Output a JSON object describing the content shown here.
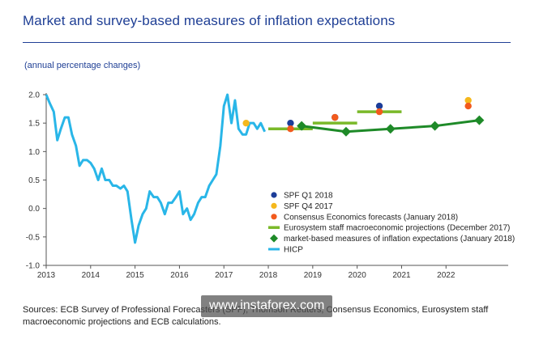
{
  "header": {
    "title": "Market and survey-based measures of inflation expectations",
    "subtitle": "(annual percentage changes)"
  },
  "footer": {
    "source_line1": "Sources: ECB Survey of Professional Forecasters (SPF), Thomson Reuters, Consensus Economics, Eurosystem staff",
    "source_line2": "macroeconomic projections and ECB calculations."
  },
  "watermark": {
    "text": "www.instaforex.com"
  },
  "chart_data": {
    "type": "line",
    "title": "Market and survey-based measures of inflation expectations",
    "subtitle": "(annual percentage changes)",
    "xlabel": "",
    "ylabel": "",
    "xlim": [
      2013,
      2023.4
    ],
    "ylim": [
      -1.0,
      2.0
    ],
    "x_ticks": [
      2013,
      2014,
      2015,
      2016,
      2017,
      2018,
      2019,
      2020,
      2021,
      2022
    ],
    "y_ticks": [
      -1.0,
      -0.5,
      0.0,
      0.5,
      1.0,
      1.5,
      2.0
    ],
    "x_tick_labels": [
      "2013",
      "2014",
      "2015",
      "2016",
      "2017",
      "2018",
      "2019",
      "2020",
      "2021",
      "2022"
    ],
    "y_tick_labels": [
      "-1.0",
      "-0.5",
      "0.0",
      "0.5",
      "1.0",
      "1.5",
      "2.0"
    ],
    "grid": false,
    "legend_position": "center-right",
    "series": [
      {
        "name": "HICP",
        "kind": "line",
        "color": "#29b6e8",
        "x": [
          2013.0,
          2013.08,
          2013.17,
          2013.25,
          2013.33,
          2013.42,
          2013.5,
          2013.58,
          2013.67,
          2013.75,
          2013.83,
          2013.92,
          2014.0,
          2014.08,
          2014.17,
          2014.25,
          2014.33,
          2014.42,
          2014.5,
          2014.58,
          2014.67,
          2014.75,
          2014.83,
          2014.92,
          2015.0,
          2015.08,
          2015.17,
          2015.25,
          2015.33,
          2015.42,
          2015.5,
          2015.58,
          2015.67,
          2015.75,
          2015.83,
          2015.92,
          2016.0,
          2016.08,
          2016.17,
          2016.25,
          2016.33,
          2016.42,
          2016.5,
          2016.58,
          2016.67,
          2016.75,
          2016.83,
          2016.92,
          2017.0,
          2017.08,
          2017.17,
          2017.25,
          2017.33,
          2017.42,
          2017.5,
          2017.58,
          2017.67,
          2017.75,
          2017.83,
          2017.92
        ],
        "y": [
          2.0,
          1.85,
          1.7,
          1.2,
          1.4,
          1.6,
          1.6,
          1.3,
          1.1,
          0.75,
          0.85,
          0.85,
          0.8,
          0.7,
          0.5,
          0.7,
          0.5,
          0.5,
          0.4,
          0.4,
          0.35,
          0.4,
          0.3,
          -0.2,
          -0.6,
          -0.3,
          -0.1,
          0.0,
          0.3,
          0.2,
          0.2,
          0.1,
          -0.1,
          0.1,
          0.1,
          0.2,
          0.3,
          -0.1,
          0.0,
          -0.2,
          -0.1,
          0.1,
          0.2,
          0.2,
          0.4,
          0.5,
          0.6,
          1.1,
          1.8,
          2.0,
          1.5,
          1.9,
          1.4,
          1.3,
          1.3,
          1.5,
          1.5,
          1.4,
          1.5,
          1.35
        ]
      },
      {
        "name": "Eurosystem staff macroeconomic projections (December 2017)",
        "kind": "step",
        "color": "#7ab929",
        "segments": [
          {
            "x": [
              2018.0,
              2019.0
            ],
            "y": 1.4
          },
          {
            "x": [
              2019.0,
              2020.0
            ],
            "y": 1.5
          },
          {
            "x": [
              2020.0,
              2021.0
            ],
            "y": 1.7
          }
        ]
      },
      {
        "name": "market-based measures of inflation expectations (January 2018)",
        "kind": "line-markers",
        "color": "#1e8a28",
        "x": [
          2018.75,
          2019.75,
          2020.75,
          2021.75,
          2022.75
        ],
        "y": [
          1.45,
          1.35,
          1.4,
          1.45,
          1.55
        ]
      },
      {
        "name": "SPF Q1 2018",
        "kind": "points",
        "color": "#1c3d99",
        "x": [
          2018.5,
          2019.5,
          2020.5
        ],
        "y": [
          1.5,
          1.6,
          1.8
        ]
      },
      {
        "name": "SPF Q4 2017",
        "kind": "points",
        "color": "#f5b81c",
        "x": [
          2017.5,
          2022.5
        ],
        "y": [
          1.5,
          1.9
        ]
      },
      {
        "name": "Consensus Economics forecasts (January 2018)",
        "kind": "points",
        "color": "#f25a1d",
        "x": [
          2018.5,
          2019.5,
          2020.5,
          2022.5
        ],
        "y": [
          1.4,
          1.6,
          1.7,
          1.8
        ]
      }
    ],
    "legend": [
      {
        "label": "SPF Q1 2018",
        "marker": "dot",
        "color": "#1c3d99"
      },
      {
        "label": "SPF Q4 2017",
        "marker": "dot",
        "color": "#f5b81c"
      },
      {
        "label": "Consensus Economics forecasts (January 2018)",
        "marker": "dot",
        "color": "#f25a1d"
      },
      {
        "label": "Eurosystem staff macroeconomic projections (December 2017)",
        "marker": "bar",
        "color": "#7ab929"
      },
      {
        "label": "market-based measures of inflation expectations (January 2018)",
        "marker": "diamond",
        "color": "#1e8a28"
      },
      {
        "label": "HICP",
        "marker": "line",
        "color": "#29b6e8"
      }
    ]
  }
}
